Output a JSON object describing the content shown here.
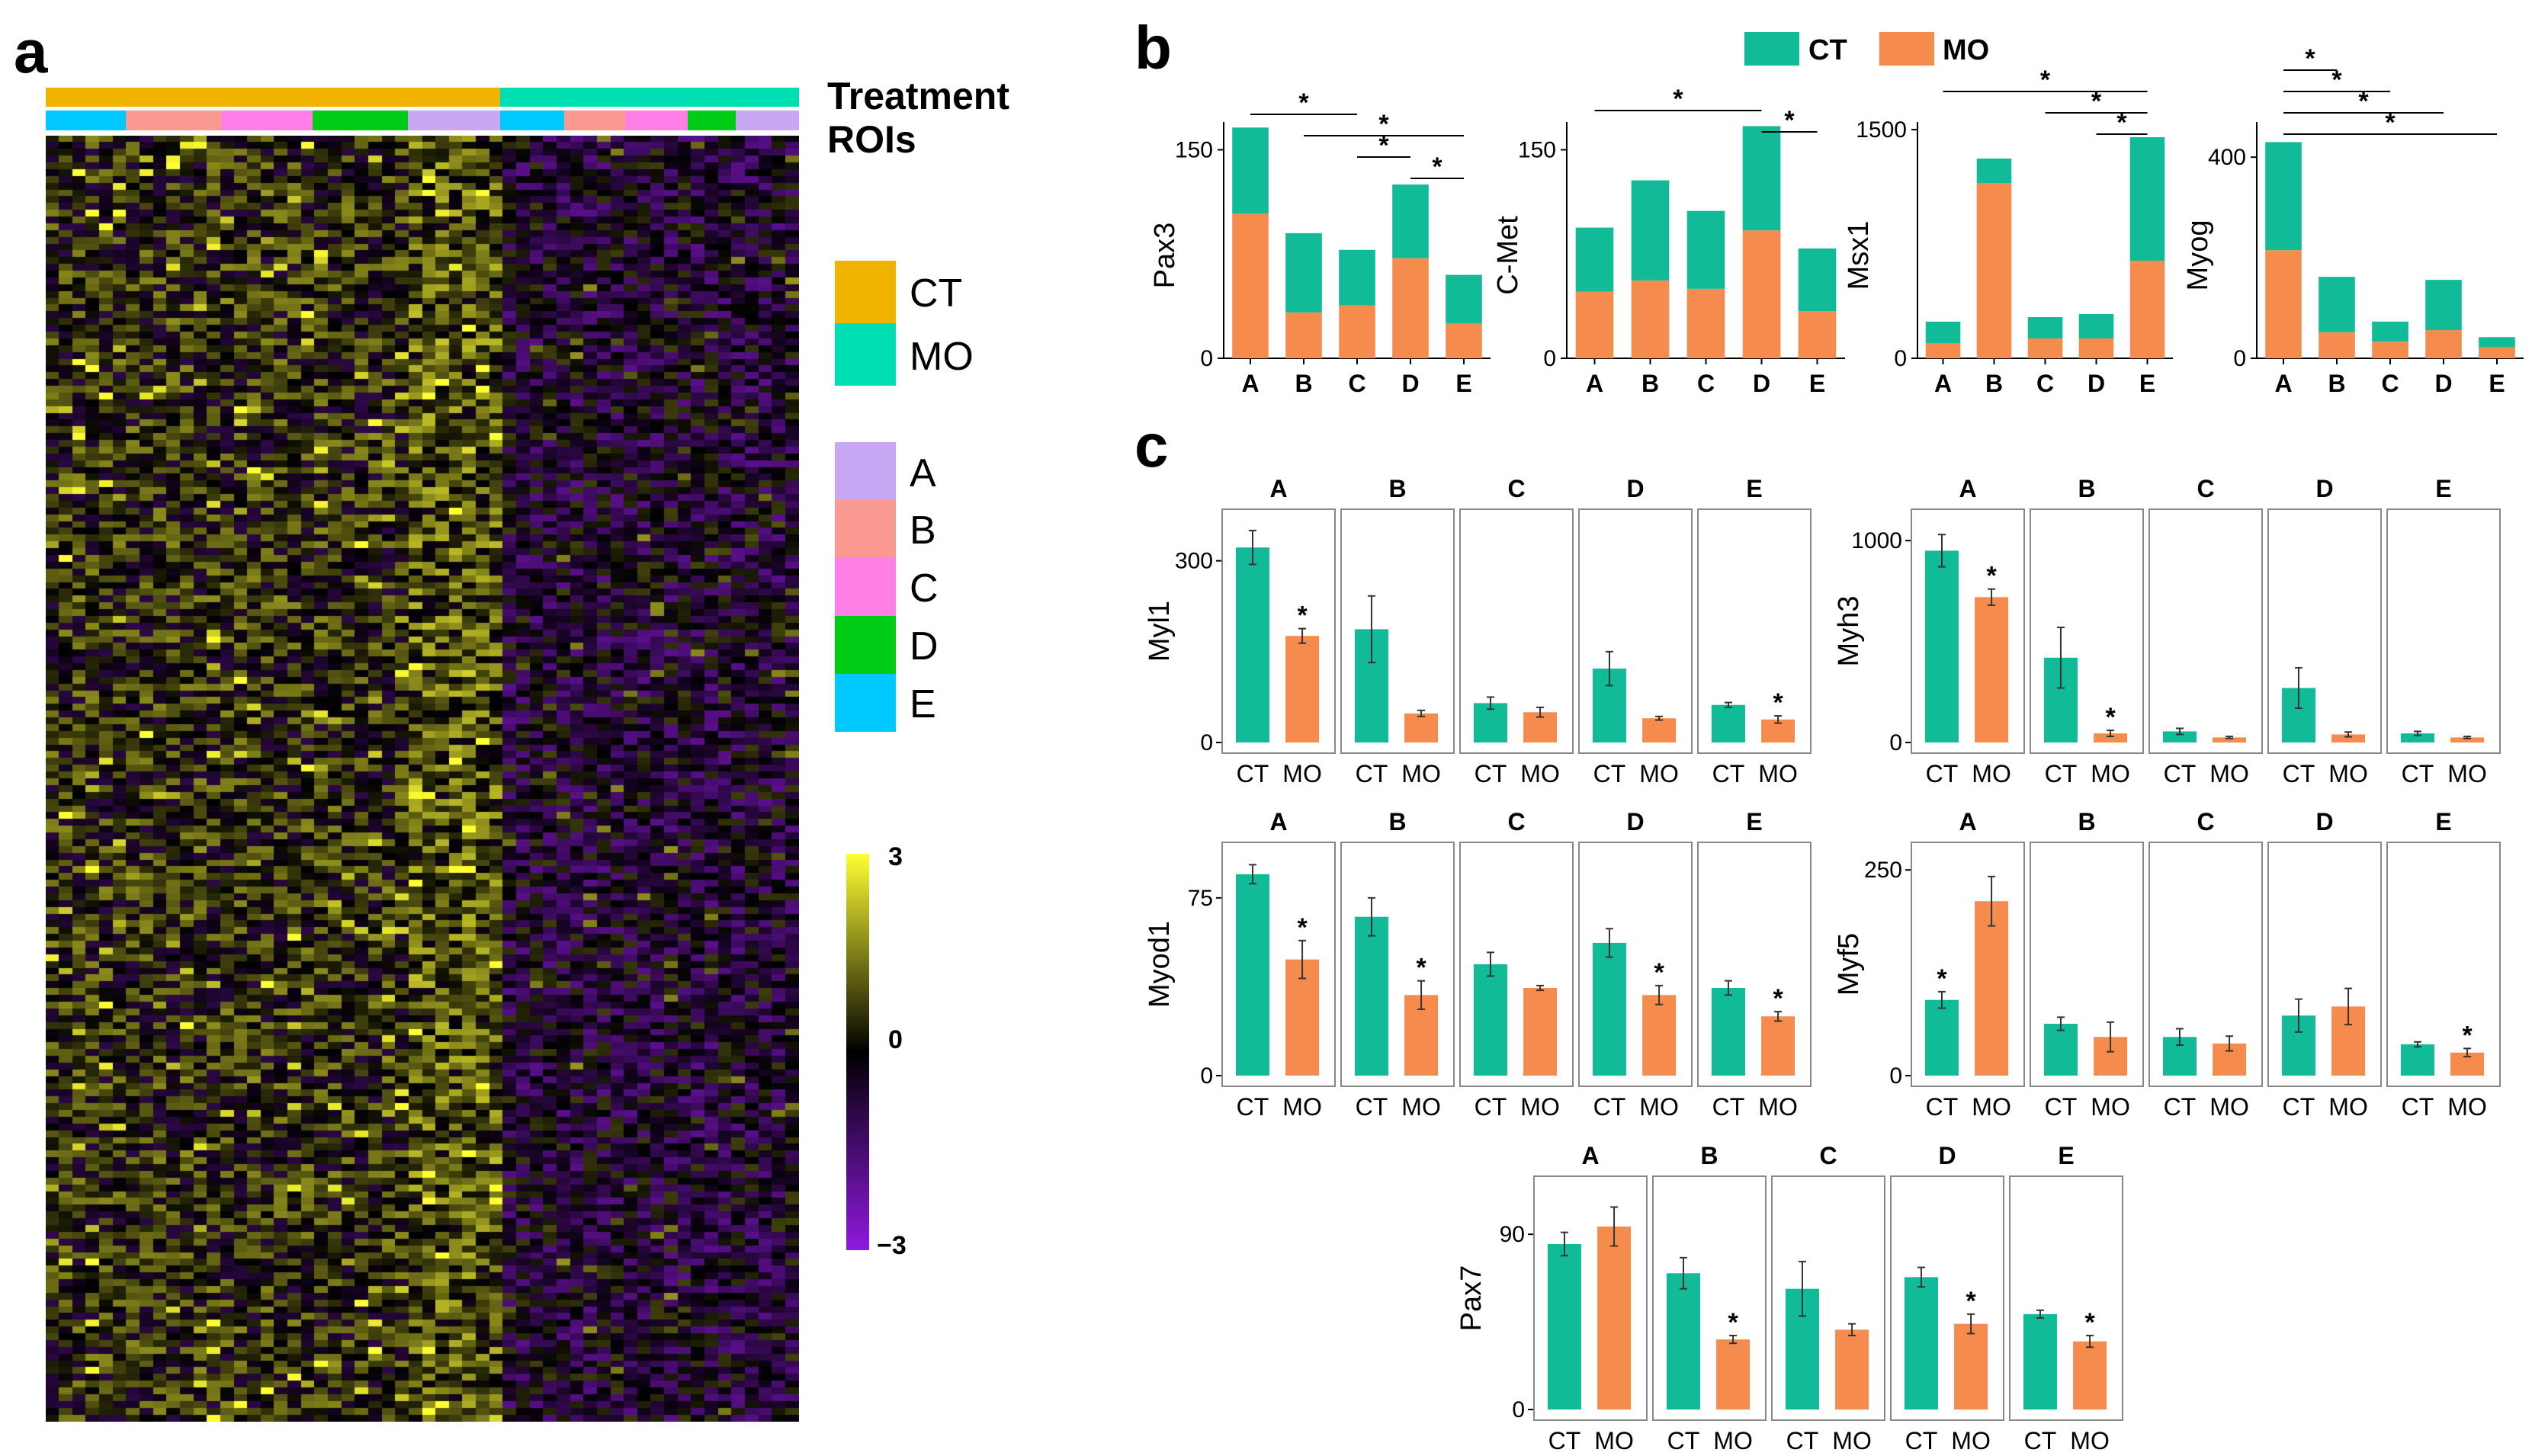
{
  "figure": {
    "panel_a_letter": "a",
    "panel_b_letter": "b",
    "panel_c_letter": "c"
  },
  "colors": {
    "ct": "#12BB98",
    "mo": "#F58C4E",
    "roi_A": "#C8A8F4",
    "roi_B": "#F9998F",
    "roi_C": "#FF7FE6",
    "roi_D": "#00CC16",
    "roi_E": "#00C9FF",
    "treat_CT": "#EFB300",
    "treat_MO": "#00DFB4",
    "heat_high": "#FFFF33",
    "heat_mid": "#000000",
    "heat_low": "#9019E0"
  },
  "heatmap": {
    "track_labels": [
      "Treatment",
      "ROIs"
    ],
    "legend_treatment": [
      {
        "label": "CT",
        "color_key": "treat_CT"
      },
      {
        "label": "MO",
        "color_key": "treat_MO"
      }
    ],
    "legend_rois": [
      {
        "label": "A",
        "color_key": "roi_A"
      },
      {
        "label": "B",
        "color_key": "roi_B"
      },
      {
        "label": "C",
        "color_key": "roi_C"
      },
      {
        "label": "D",
        "color_key": "roi_D"
      },
      {
        "label": "E",
        "color_key": "roi_E"
      }
    ],
    "scale_max": "3",
    "scale_mid": "0",
    "scale_min": "−3"
  },
  "legend_b": {
    "ct": "CT",
    "mo": "MO"
  },
  "chart_data": [
    {
      "id": "stacked",
      "type": "bar",
      "stacked": true,
      "categories": [
        "A",
        "B",
        "C",
        "D",
        "E"
      ],
      "charts": [
        {
          "ylabel": "Pax3",
          "ylim": [
            0,
            170
          ],
          "ticks": [
            0,
            150
          ],
          "mo": [
            104,
            33,
            38,
            72,
            25
          ],
          "ct": [
            62,
            57,
            40,
            53,
            35
          ],
          "sig": [
            [
              0,
              2
            ],
            [
              1,
              4
            ],
            [
              2,
              3
            ],
            [
              3,
              4
            ]
          ]
        },
        {
          "ylabel": "C-Met",
          "ylim": [
            0,
            170
          ],
          "ticks": [
            0,
            150
          ],
          "mo": [
            48,
            56,
            50,
            92,
            34
          ],
          "ct": [
            46,
            72,
            56,
            75,
            45
          ],
          "sig": [
            [
              0,
              3
            ],
            [
              3,
              4
            ]
          ]
        },
        {
          "ylabel": "Msx1",
          "ylim": [
            0,
            1550
          ],
          "ticks": [
            0,
            1500
          ],
          "mo": [
            100,
            1150,
            130,
            130,
            640
          ],
          "ct": [
            140,
            160,
            140,
            160,
            810
          ],
          "sig": [
            [
              0,
              4
            ],
            [
              2,
              4
            ],
            [
              3,
              4
            ]
          ]
        },
        {
          "ylabel": "Myog",
          "ylim": [
            0,
            470
          ],
          "ticks": [
            0,
            400
          ],
          "mo": [
            215,
            52,
            33,
            56,
            22
          ],
          "ct": [
            215,
            110,
            40,
            100,
            20
          ],
          "sig": [
            [
              0,
              1
            ],
            [
              0,
              2
            ],
            [
              0,
              3
            ],
            [
              0,
              4
            ]
          ]
        }
      ]
    },
    {
      "id": "faceted",
      "type": "bar",
      "facets": [
        "A",
        "B",
        "C",
        "D",
        "E"
      ],
      "x": [
        "CT",
        "MO"
      ],
      "charts": [
        {
          "ylabel": "Myl1",
          "ylim": [
            0,
            360
          ],
          "ticks": [
            0,
            300
          ],
          "ct": [
            322,
            187,
            65,
            122,
            62
          ],
          "mo": [
            176,
            48,
            50,
            40,
            38
          ],
          "ct_err": [
            28,
            55,
            10,
            28,
            4
          ],
          "mo_err": [
            12,
            5,
            8,
            3,
            6
          ],
          "star": [
            "mo",
            null,
            null,
            null,
            "mo"
          ]
        },
        {
          "ylabel": "Myh3",
          "ylim": [
            0,
            1080
          ],
          "ticks": [
            0,
            1000
          ],
          "ct": [
            950,
            420,
            55,
            270,
            45
          ],
          "mo": [
            720,
            45,
            25,
            40,
            25
          ],
          "ct_err": [
            80,
            150,
            15,
            100,
            10
          ],
          "mo_err": [
            40,
            15,
            5,
            12,
            5
          ],
          "star": [
            "mo",
            "mo",
            null,
            null,
            null
          ]
        },
        {
          "ylabel": "Myod1",
          "ylim": [
            0,
            92
          ],
          "ticks": [
            0,
            75
          ],
          "ct": [
            85,
            67,
            47,
            56,
            37
          ],
          "mo": [
            49,
            34,
            37,
            34,
            25
          ],
          "ct_err": [
            4,
            8,
            5,
            6,
            3
          ],
          "mo_err": [
            8,
            6,
            1,
            4,
            2
          ],
          "star": [
            "mo",
            "mo",
            null,
            "mo",
            "mo"
          ]
        },
        {
          "ylabel": "Myf5",
          "ylim": [
            0,
            265
          ],
          "ticks": [
            0,
            250
          ],
          "ct": [
            92,
            63,
            47,
            73,
            38
          ],
          "mo": [
            212,
            47,
            39,
            84,
            28
          ],
          "ct_err": [
            10,
            8,
            10,
            20,
            3
          ],
          "mo_err": [
            30,
            18,
            9,
            22,
            5
          ],
          "star": [
            "ct",
            null,
            null,
            null,
            "mo"
          ]
        },
        {
          "ylabel": "Pax7",
          "ylim": [
            0,
            112
          ],
          "ticks": [
            0,
            90
          ],
          "ct": [
            85,
            70,
            62,
            68,
            49
          ],
          "mo": [
            94,
            36,
            41,
            44,
            35
          ],
          "ct_err": [
            6,
            8,
            14,
            5,
            2
          ],
          "mo_err": [
            10,
            2,
            3,
            5,
            3
          ],
          "star": [
            null,
            "mo",
            null,
            "mo",
            "mo"
          ]
        }
      ]
    }
  ]
}
